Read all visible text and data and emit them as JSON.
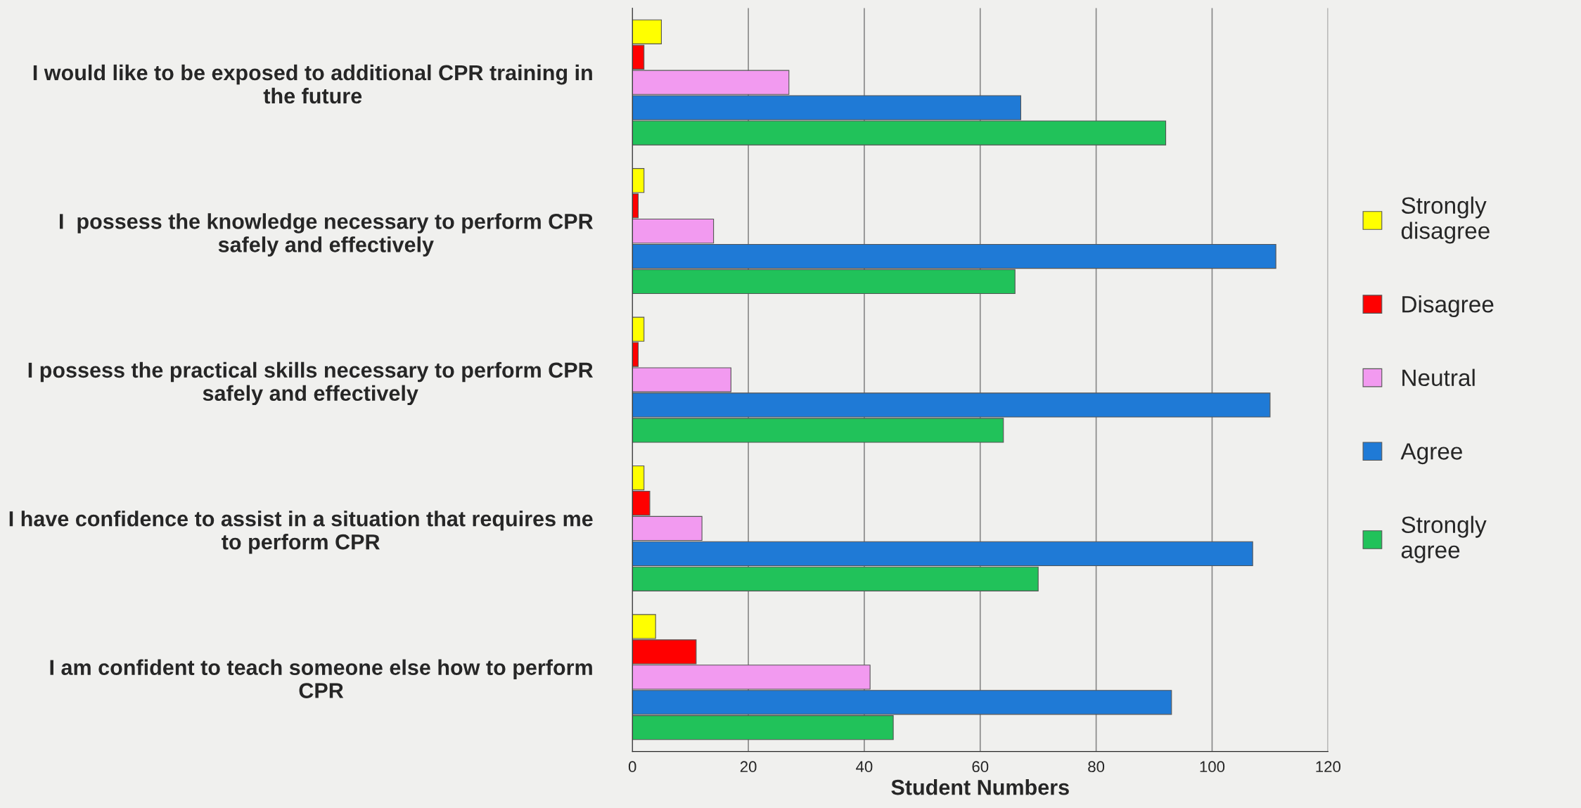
{
  "chart_data": {
    "type": "bar",
    "orientation": "horizontal",
    "xlabel": "Student Numbers",
    "categories": [
      "I would like to be exposed to additional CPR training in the future",
      "I  possess the knowledge necessary to perform CPR safely and effectively",
      "I possess the practical skills necessary to perform CPR safely and effectively",
      "I have confidence to assist in a situation that requires me to perform CPR",
      "I am confident to teach someone else how to perform CPR"
    ],
    "series": [
      {
        "name": "Strongly disagree",
        "color": "#ffff00",
        "values": [
          5,
          2,
          2,
          2,
          4
        ]
      },
      {
        "name": "Disagree",
        "color": "#ff0000",
        "values": [
          2,
          1,
          1,
          3,
          11
        ]
      },
      {
        "name": "Neutral",
        "color": "#f29af0",
        "values": [
          27,
          14,
          17,
          12,
          41
        ]
      },
      {
        "name": "Agree",
        "color": "#1f7ad6",
        "values": [
          67,
          111,
          110,
          107,
          93
        ]
      },
      {
        "name": "Strongly agree",
        "color": "#21c25a",
        "values": [
          92,
          66,
          64,
          70,
          45
        ]
      }
    ],
    "xlim": [
      0,
      120
    ],
    "xticks": [
      0,
      20,
      40,
      60,
      80,
      100,
      120
    ],
    "grid": "x",
    "legend": "right"
  }
}
